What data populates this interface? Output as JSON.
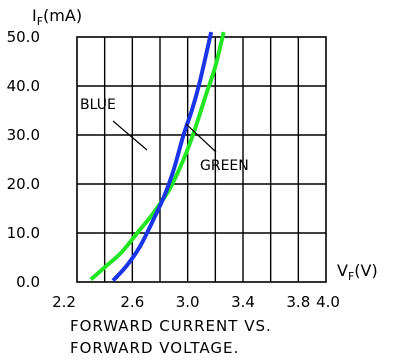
{
  "chart_data": {
    "type": "line",
    "title": "",
    "xlabel": {
      "main": "V",
      "sub": "F",
      "unit": "(V)"
    },
    "ylabel": {
      "main": "I",
      "sub": "F",
      "unit": "(mA)"
    },
    "xlim": [
      2.2,
      4.0
    ],
    "ylim": [
      0,
      50
    ],
    "x_major_step": 0.4,
    "x_minor_step": 0.2,
    "y_step": 10,
    "x_tick_labels": [
      "2.2",
      "2.6",
      "3.0",
      "3.4",
      "3.8",
      "4.0"
    ],
    "x_tick_values": [
      2.2,
      2.6,
      3.0,
      3.4,
      3.8,
      4.0
    ],
    "y_tick_labels": [
      "0.0",
      "10.0",
      "20.0",
      "30.0",
      "40.0",
      "50.0"
    ],
    "y_tick_values": [
      0,
      10,
      20,
      30,
      40,
      50
    ],
    "grid": true,
    "series": [
      {
        "name": "BLUE",
        "color": "#1a35e8",
        "points": [
          [
            2.46,
            0.3
          ],
          [
            2.55,
            3
          ],
          [
            2.65,
            7
          ],
          [
            2.74,
            12
          ],
          [
            2.83,
            17.5
          ],
          [
            2.9,
            23
          ],
          [
            2.97,
            30
          ],
          [
            3.03,
            35
          ],
          [
            3.08,
            40
          ],
          [
            3.13,
            46
          ],
          [
            3.17,
            51
          ]
        ]
      },
      {
        "name": "GREEN",
        "color": "#22e622",
        "points": [
          [
            2.3,
            0.5
          ],
          [
            2.4,
            3
          ],
          [
            2.52,
            6
          ],
          [
            2.65,
            10.5
          ],
          [
            2.75,
            14
          ],
          [
            2.87,
            19
          ],
          [
            2.97,
            25
          ],
          [
            3.05,
            31
          ],
          [
            3.13,
            38
          ],
          [
            3.2,
            44
          ],
          [
            3.26,
            51
          ]
        ]
      }
    ],
    "annotations": [
      {
        "text": "BLUE",
        "series": "BLUE"
      },
      {
        "text": "GREEN",
        "series": "GREEN"
      }
    ]
  },
  "caption": {
    "line1": "FORWARD CURRENT VS.",
    "line2": "FORWARD VOLTAGE."
  }
}
